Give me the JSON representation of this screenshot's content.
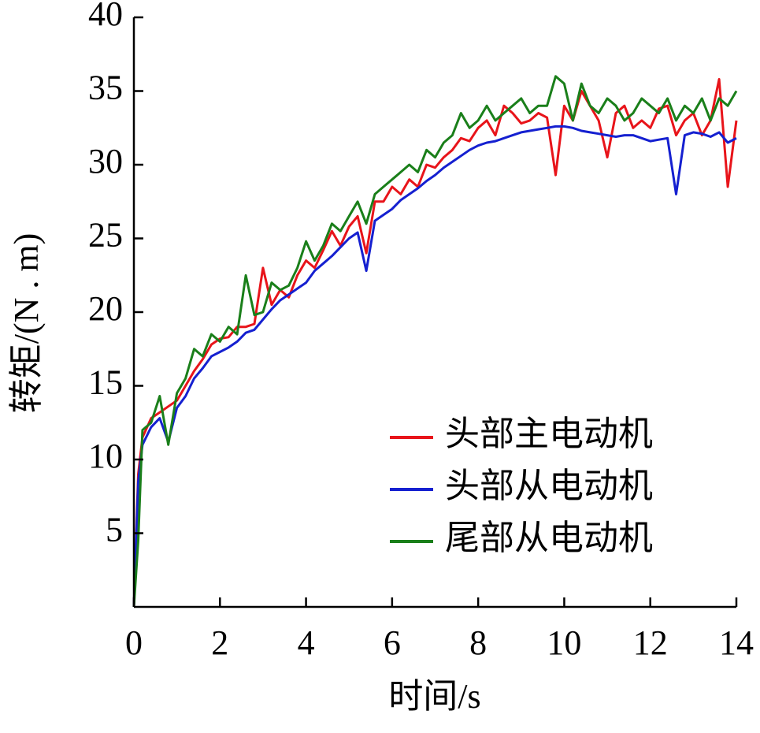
{
  "chart_data": {
    "type": "line",
    "xlabel": "时间/s",
    "ylabel": "转矩/(N . m)",
    "x": [
      0,
      0.1,
      0.2,
      0.4,
      0.6,
      0.8,
      1.0,
      1.2,
      1.4,
      1.6,
      1.8,
      2.0,
      2.2,
      2.4,
      2.6,
      2.8,
      3.0,
      3.2,
      3.4,
      3.6,
      3.8,
      4.0,
      4.2,
      4.4,
      4.6,
      4.8,
      5.0,
      5.2,
      5.4,
      5.6,
      5.8,
      6.0,
      6.2,
      6.4,
      6.6,
      6.8,
      7.0,
      7.2,
      7.4,
      7.6,
      7.8,
      8.0,
      8.2,
      8.4,
      8.6,
      8.8,
      9.0,
      9.2,
      9.4,
      9.6,
      9.8,
      10.0,
      10.2,
      10.4,
      10.6,
      10.8,
      11.0,
      11.2,
      11.4,
      11.6,
      11.8,
      12.0,
      12.2,
      12.4,
      12.6,
      12.8,
      13.0,
      13.2,
      13.4,
      13.6,
      13.8,
      14.0
    ],
    "series": [
      {
        "name": "头部主电动机",
        "color": "#e8141a",
        "values": [
          0,
          9,
          11.5,
          12.8,
          13.2,
          13.6,
          14,
          15,
          16,
          16.8,
          17.8,
          18.2,
          18.3,
          19,
          19,
          19.2,
          23,
          20.5,
          21.5,
          21,
          22.5,
          23.5,
          23,
          24.2,
          25.5,
          24.5,
          25.8,
          26.5,
          24,
          27.5,
          27.5,
          28.5,
          28,
          29,
          28.5,
          30,
          29.8,
          30.5,
          31,
          31.8,
          31.6,
          32.5,
          33,
          32,
          34,
          33.5,
          32.8,
          33,
          33.5,
          33.2,
          29.3,
          34,
          33,
          35,
          34,
          33,
          30.5,
          33.5,
          34,
          32.5,
          33,
          32.5,
          33.8,
          34,
          32,
          33,
          33.5,
          32,
          33,
          35.8,
          28.5,
          33
        ]
      },
      {
        "name": "头部从电动机",
        "color": "#1520d0",
        "values": [
          0,
          8.5,
          11,
          12.2,
          12.8,
          11.2,
          13.5,
          14.3,
          15.5,
          16.2,
          17,
          17.3,
          17.6,
          18,
          18.6,
          18.8,
          19.5,
          20.2,
          20.8,
          21.2,
          21.6,
          22,
          22.8,
          23.3,
          23.8,
          24.4,
          25,
          25.4,
          22.8,
          26.2,
          26.6,
          27,
          27.6,
          28,
          28.4,
          28.9,
          29.3,
          29.8,
          30.2,
          30.6,
          31,
          31.3,
          31.5,
          31.6,
          31.8,
          32,
          32.2,
          32.3,
          32.4,
          32.5,
          32.6,
          32.6,
          32.5,
          32.3,
          32.2,
          32.1,
          32,
          31.9,
          32,
          32,
          31.8,
          31.6,
          31.7,
          31.8,
          28,
          32,
          32.2,
          32.1,
          31.9,
          32.2,
          31.5,
          31.8
        ]
      },
      {
        "name": "尾部从电动机",
        "color": "#1a7f1a",
        "values": [
          0,
          4.5,
          12,
          12.5,
          14.3,
          11,
          14.5,
          15.5,
          17.5,
          17,
          18.5,
          18,
          19,
          18.5,
          22.5,
          19.8,
          20,
          22,
          21.5,
          21.8,
          23,
          24.8,
          23.5,
          24.5,
          26,
          25.5,
          26.5,
          27.5,
          26,
          28,
          28.5,
          29,
          29.5,
          30,
          29.5,
          31,
          30.5,
          31.5,
          32,
          33.5,
          32.5,
          33,
          34,
          33,
          33.5,
          34,
          34.5,
          33.5,
          34,
          34,
          36,
          35.5,
          33,
          35.5,
          34,
          33.5,
          34.5,
          34,
          33,
          33.5,
          34.5,
          34,
          33.5,
          34.5,
          33,
          34,
          33.5,
          34.5,
          33,
          34.5,
          34,
          35
        ]
      }
    ],
    "xlim": [
      0,
      14
    ],
    "xticks": [
      0,
      2,
      4,
      6,
      8,
      10,
      12,
      14
    ],
    "ylim": [
      0,
      40
    ],
    "yticks": [
      5,
      10,
      15,
      20,
      25,
      30,
      35,
      40
    ],
    "legend": "lower right"
  }
}
